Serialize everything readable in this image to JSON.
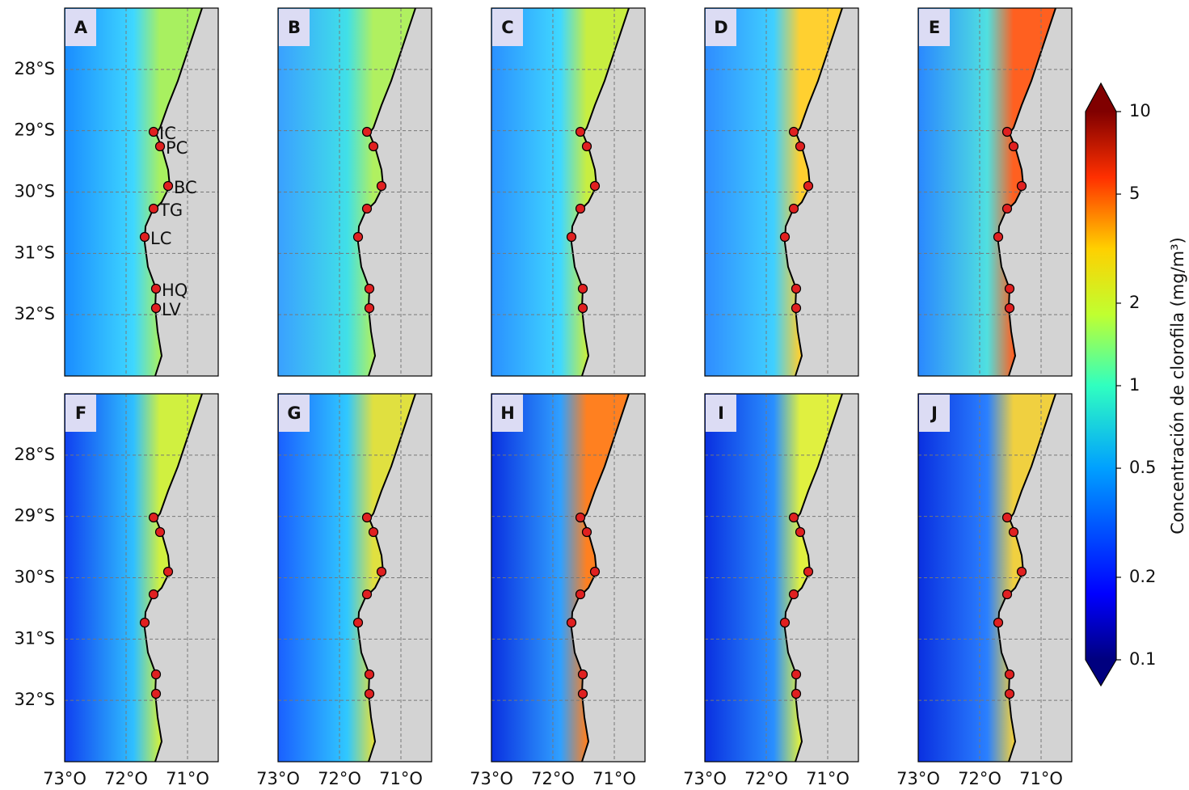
{
  "panels": [
    {
      "label": "A"
    },
    {
      "label": "B"
    },
    {
      "label": "C"
    },
    {
      "label": "D"
    },
    {
      "label": "E"
    },
    {
      "label": "F"
    },
    {
      "label": "G"
    },
    {
      "label": "H"
    },
    {
      "label": "I"
    },
    {
      "label": "J"
    }
  ],
  "map": {
    "lat_lim": [
      27,
      33
    ],
    "lon_lim": [
      73,
      70.5
    ],
    "lat_ticks": [
      {
        "value": 28,
        "label": "28°S"
      },
      {
        "value": 29,
        "label": "29°S"
      },
      {
        "value": 30,
        "label": "30°S"
      },
      {
        "value": 31,
        "label": "31°S"
      },
      {
        "value": 32,
        "label": "32°S"
      }
    ],
    "lon_ticks": [
      {
        "value": 73,
        "label": "73°O"
      },
      {
        "value": 72,
        "label": "72°O"
      },
      {
        "value": 71,
        "label": "71°O"
      }
    ]
  },
  "sites": [
    {
      "label": "IC"
    },
    {
      "label": "PC"
    },
    {
      "label": "BC"
    },
    {
      "label": "TG"
    },
    {
      "label": "LC"
    },
    {
      "label": "HQ"
    },
    {
      "label": "LV"
    }
  ],
  "colorbar": {
    "label": "Concentración de clorofila (mg/m³)",
    "scale": "log",
    "lim": [
      0.1,
      10
    ],
    "ticks": [
      0.1,
      0.2,
      0.5,
      1,
      2,
      5,
      10
    ]
  }
}
